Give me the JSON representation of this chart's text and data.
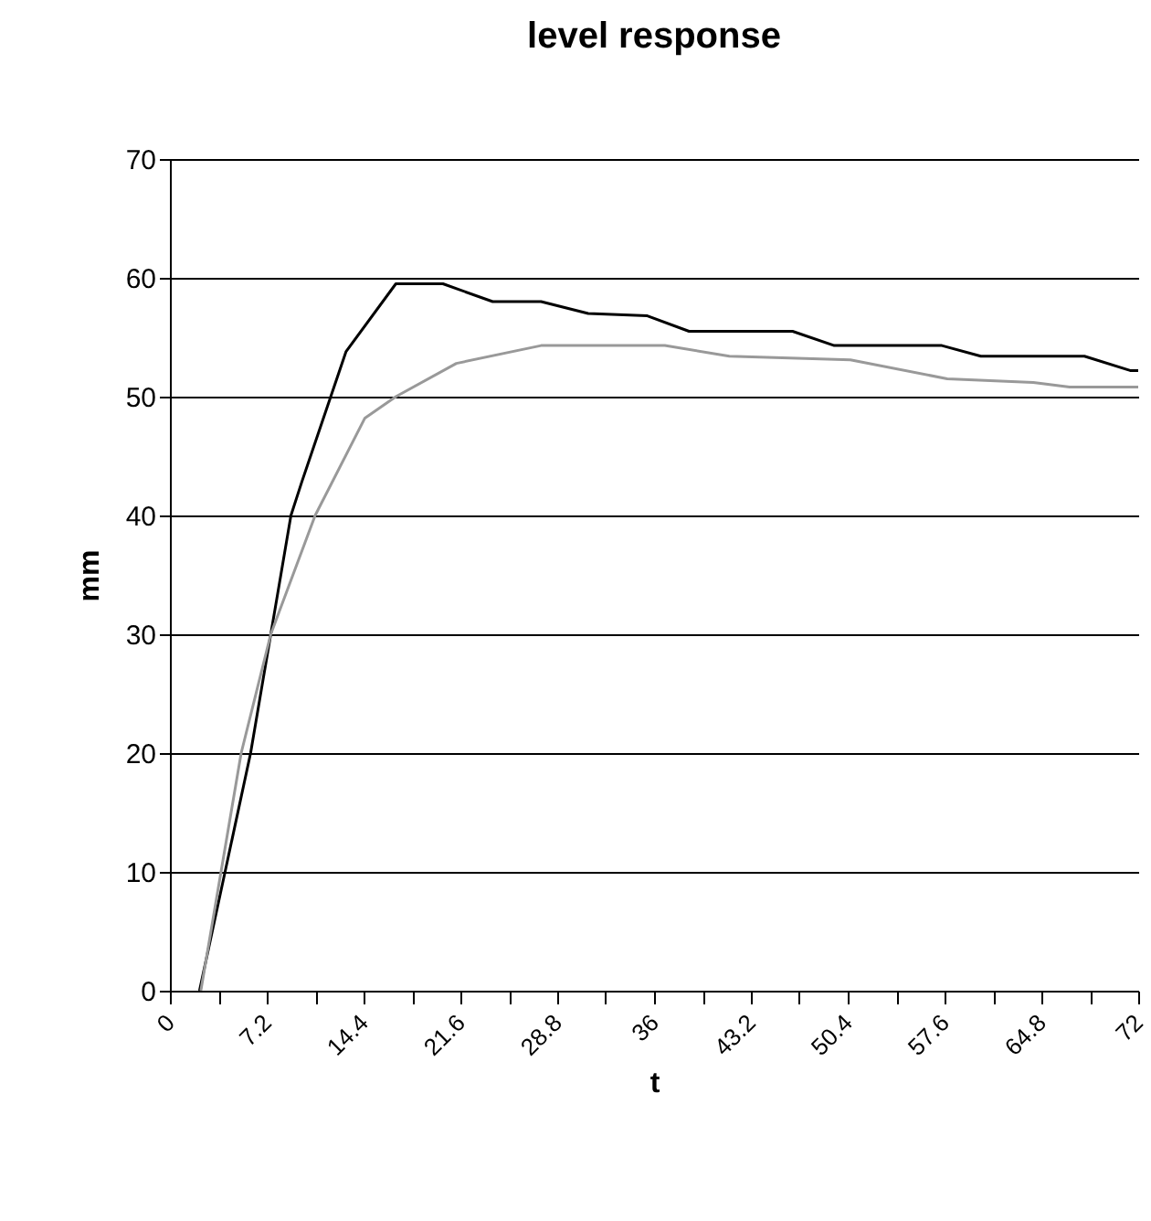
{
  "chart_data": {
    "type": "line",
    "title": "level response",
    "xlabel": "t",
    "ylabel": "mm",
    "series": [
      {
        "color": "#000000",
        "x": [
          2.2,
          4.1,
          6.0,
          7.5,
          9.0,
          9.8,
          13.1,
          16.8,
          20.3,
          24.0,
          27.6,
          31.1,
          35.5,
          38.6,
          46.3,
          49.4,
          57.4,
          60.3,
          68.0,
          71.4,
          72
        ],
        "values": [
          0,
          10,
          20,
          30,
          40,
          42.8,
          53.8,
          59.5,
          59.5,
          58,
          58,
          57,
          56.8,
          55.5,
          55.5,
          54.3,
          54.3,
          53.4,
          53.4,
          52.2,
          52.2
        ]
      },
      {
        "color": "#999999",
        "x": [
          2.3,
          3.8,
          5.3,
          7.5,
          10.8,
          14.5,
          16.8,
          21.3,
          27.6,
          36.8,
          41.6,
          50.6,
          57.8,
          64.2,
          66.9,
          72
        ],
        "values": [
          0,
          10,
          20,
          30,
          40,
          48.2,
          50,
          52.8,
          54.3,
          54.3,
          53.4,
          53.1,
          51.5,
          51.2,
          50.8,
          50.8
        ]
      }
    ],
    "xlim": [
      0,
      72
    ],
    "xticks": [
      0,
      {
        "value": 3.6,
        "label": null
      },
      7.2,
      {
        "value": 10.8,
        "label": null
      },
      14.4,
      {
        "value": 18,
        "label": null
      },
      21.6,
      {
        "value": 25.2,
        "label": null
      },
      28.8,
      {
        "value": 32.4,
        "label": null
      },
      36,
      {
        "value": 39.6,
        "label": null
      },
      43.2,
      {
        "value": 46.8,
        "label": null
      },
      50.4,
      {
        "value": 54,
        "label": null
      },
      57.6,
      {
        "value": 61.2,
        "label": null
      },
      64.8,
      {
        "value": 68.4,
        "label": null
      },
      72
    ],
    "ylim": [
      0,
      70
    ],
    "yticks": [
      0,
      10,
      20,
      30,
      40,
      50,
      60,
      70
    ],
    "grid": "y"
  }
}
